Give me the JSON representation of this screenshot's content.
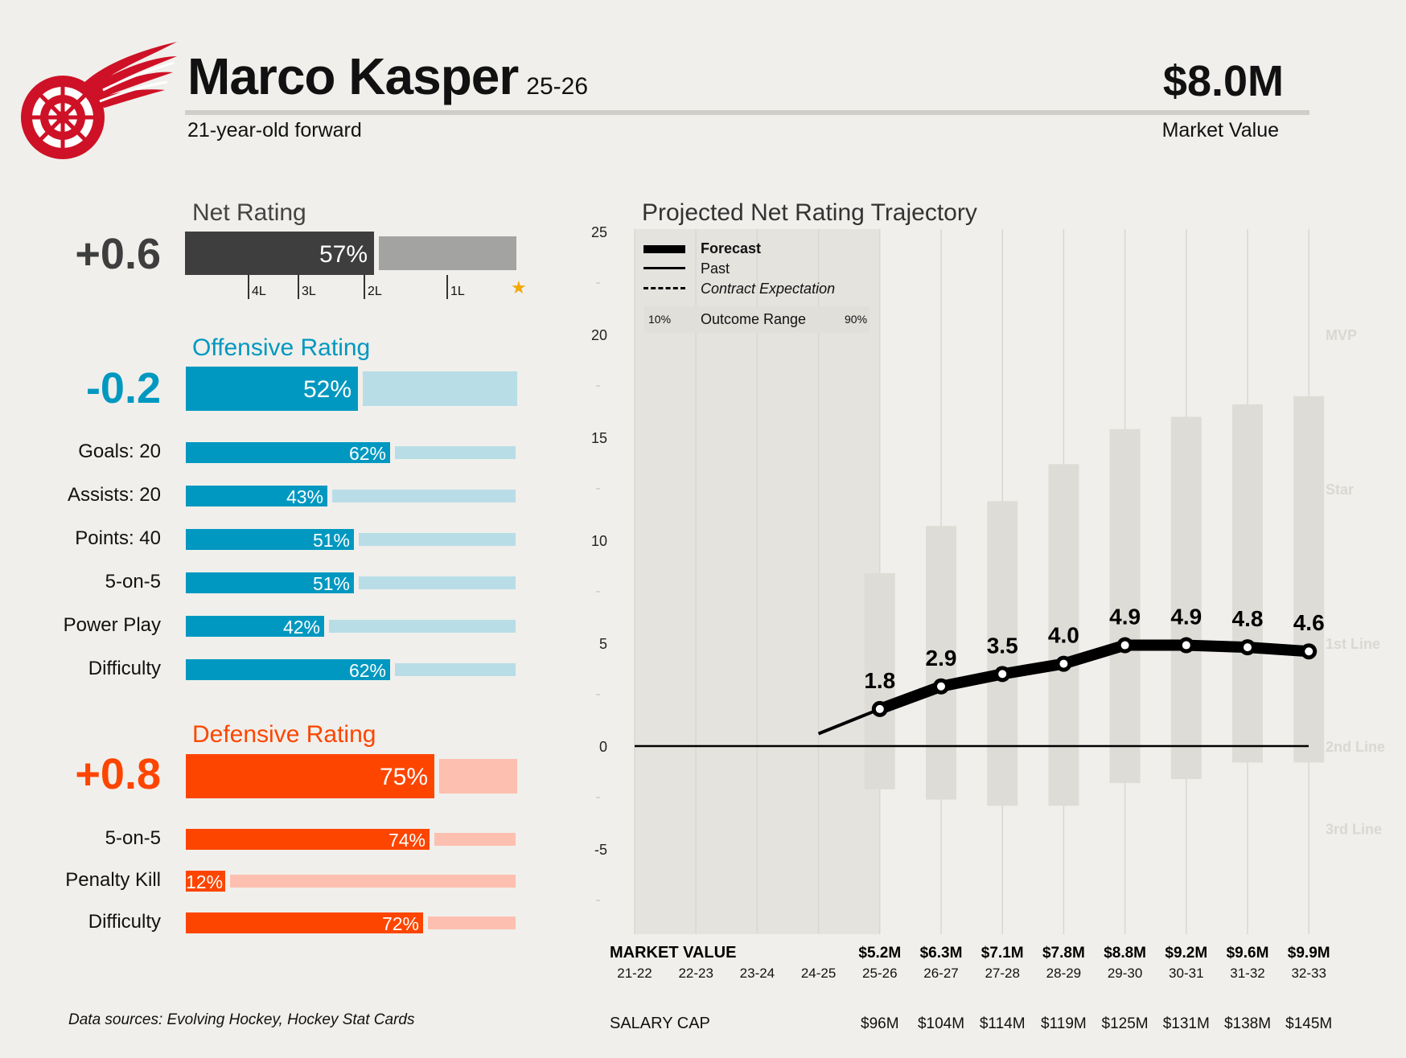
{
  "header": {
    "player_name": "Marco Kasper",
    "season": "25-26",
    "description": "21-year-old forward",
    "market_value": "$8.0M",
    "market_value_label": "Market Value",
    "team_logo_icon": "red-wings-winged-wheel-logo"
  },
  "net_rating": {
    "title": "Net Rating",
    "value": "+0.6",
    "percentile": 57,
    "percentile_label": "57%",
    "markers": [
      {
        "label": "4L",
        "pct": 19
      },
      {
        "label": "3L",
        "pct": 34
      },
      {
        "label": "2L",
        "pct": 54
      },
      {
        "label": "1L",
        "pct": 79
      },
      {
        "label": "★",
        "pct": 97
      }
    ],
    "colors": {
      "fill": "#3e3e3e",
      "rest": "#a3a3a1"
    }
  },
  "offense": {
    "title": "Offensive Rating",
    "value": "-0.2",
    "percentile": 52,
    "percentile_label": "52%",
    "colors": {
      "fill": "#0098c0",
      "rest": "#b8dde7"
    },
    "rows": [
      {
        "label": "Goals: 20",
        "pct": 62,
        "pct_label": "62%"
      },
      {
        "label": "Assists: 20",
        "pct": 43,
        "pct_label": "43%"
      },
      {
        "label": "Points: 40",
        "pct": 51,
        "pct_label": "51%"
      },
      {
        "label": "5-on-5",
        "pct": 51,
        "pct_label": "51%"
      },
      {
        "label": "Power Play",
        "pct": 42,
        "pct_label": "42%"
      },
      {
        "label": "Difficulty",
        "pct": 62,
        "pct_label": "62%"
      }
    ]
  },
  "defense": {
    "title": "Defensive Rating",
    "value": "+0.8",
    "percentile": 75,
    "percentile_label": "75%",
    "colors": {
      "fill": "#fd4500",
      "rest": "#fdbfb0"
    },
    "rows": [
      {
        "label": "5-on-5",
        "pct": 74,
        "pct_label": "74%"
      },
      {
        "label": "Penalty Kill",
        "pct": 12,
        "pct_label": "12%"
      },
      {
        "label": "Difficulty",
        "pct": 72,
        "pct_label": "72%"
      }
    ]
  },
  "footer": {
    "sources": "Data sources: Evolving Hockey, Hockey Stat Cards"
  },
  "chart_data": {
    "type": "line",
    "title": "Projected Net Rating Trajectory",
    "categories": [
      "21-22",
      "22-23",
      "23-24",
      "24-25",
      "25-26",
      "26-27",
      "27-28",
      "28-29",
      "29-30",
      "30-31",
      "31-32",
      "32-33"
    ],
    "ylim": [
      -9,
      25
    ],
    "yticks": [
      25,
      20,
      15,
      10,
      5,
      0,
      -5
    ],
    "grid": true,
    "legend": {
      "placement": "top-left",
      "items": [
        "Forecast",
        "Past",
        "Contract Expectation"
      ],
      "range_low": "10%",
      "range_label": "Outcome Range",
      "range_high": "90%"
    },
    "series": [
      {
        "name": "Forecast",
        "x": [
          "25-26",
          "26-27",
          "27-28",
          "28-29",
          "29-30",
          "30-31",
          "31-32",
          "32-33"
        ],
        "values": [
          1.8,
          2.9,
          3.5,
          4.0,
          4.9,
          4.9,
          4.8,
          4.6
        ],
        "labels": [
          "1.8",
          "2.9",
          "3.5",
          "4.0",
          "4.9",
          "4.9",
          "4.8",
          "4.6"
        ]
      },
      {
        "name": "Past",
        "x": [
          "24-25",
          "25-26"
        ],
        "values": [
          0.6,
          1.8
        ]
      }
    ],
    "outcome_range": {
      "x": [
        "25-26",
        "26-27",
        "27-28",
        "28-29",
        "29-30",
        "30-31",
        "31-32",
        "32-33"
      ],
      "low": [
        -2.1,
        -2.6,
        -2.9,
        -2.9,
        -1.8,
        -1.6,
        -0.8,
        -0.8
      ],
      "high": [
        8.4,
        10.7,
        11.9,
        13.7,
        15.4,
        16.0,
        16.6,
        17.0
      ]
    },
    "tiers": [
      {
        "label": "MVP",
        "y": 20
      },
      {
        "label": "Star",
        "y": 12.5
      },
      {
        "label": "1st Line",
        "y": 5
      },
      {
        "label": "2nd Line",
        "y": 0
      },
      {
        "label": "3rd Line",
        "y": -4
      }
    ],
    "market_value_title": "MARKET VALUE",
    "market_value": [
      "",
      "",
      "",
      "",
      "$5.2M",
      "$6.3M",
      "$7.1M",
      "$7.8M",
      "$8.8M",
      "$9.2M",
      "$9.6M",
      "$9.9M"
    ],
    "salary_cap_title": "SALARY CAP",
    "salary_cap": [
      "",
      "",
      "",
      "",
      "$96M",
      "$104M",
      "$114M",
      "$119M",
      "$125M",
      "$131M",
      "$138M",
      "$145M"
    ],
    "colors": {
      "line": "#000000",
      "range": "#dedcd6",
      "tier_label": "#d9d8d3",
      "shade": "#e4e3de",
      "grid": "#d8d7d2"
    }
  }
}
